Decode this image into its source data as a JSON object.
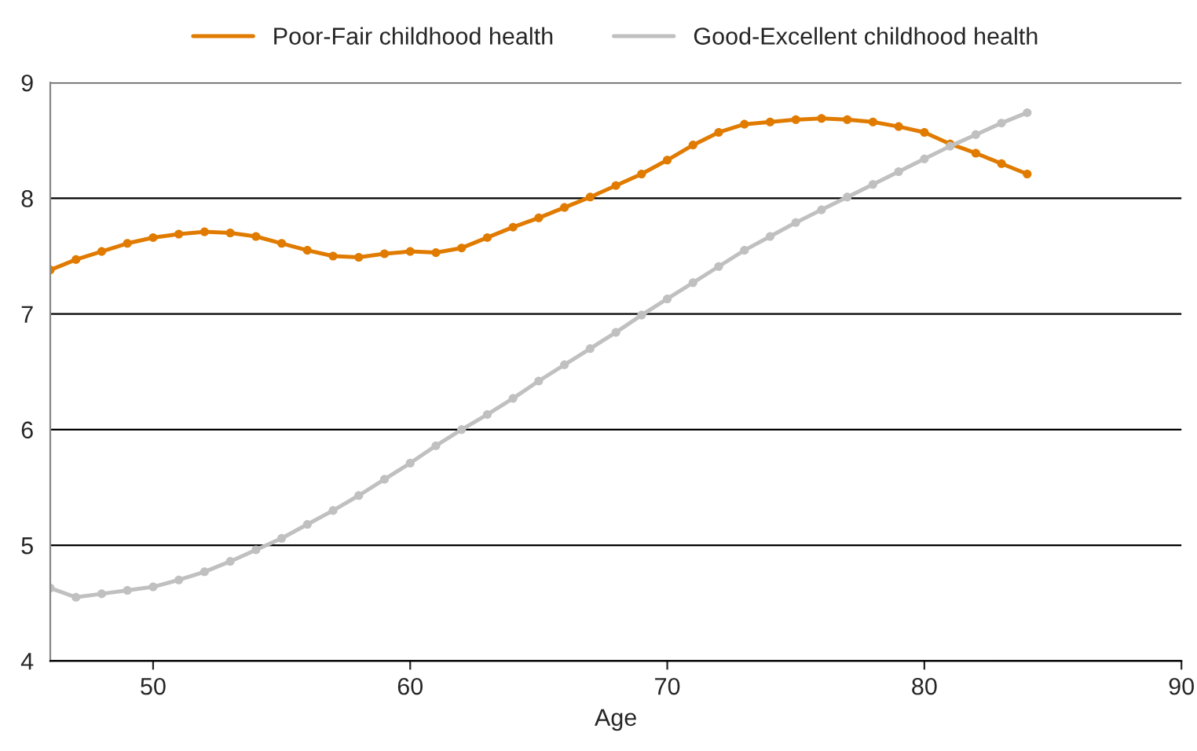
{
  "chart_data": {
    "type": "line",
    "xlabel": "Age",
    "x": [
      46,
      47,
      48,
      49,
      50,
      51,
      52,
      53,
      54,
      55,
      56,
      57,
      58,
      59,
      60,
      61,
      62,
      63,
      64,
      65,
      66,
      67,
      68,
      69,
      70,
      71,
      72,
      73,
      74,
      75,
      76,
      77,
      78,
      79,
      80,
      81,
      82,
      83,
      84
    ],
    "series": [
      {
        "name": "Poor-Fair childhood health",
        "color": "#e07b00",
        "values": [
          7.38,
          7.47,
          7.54,
          7.61,
          7.66,
          7.69,
          7.71,
          7.7,
          7.67,
          7.61,
          7.55,
          7.5,
          7.49,
          7.52,
          7.54,
          7.53,
          7.57,
          7.66,
          7.75,
          7.83,
          7.92,
          8.01,
          8.11,
          8.21,
          8.33,
          8.46,
          8.57,
          8.64,
          8.66,
          8.68,
          8.69,
          8.68,
          8.66,
          8.62,
          8.57,
          8.47,
          8.39,
          8.3,
          8.21
        ]
      },
      {
        "name": "Good-Excellent childhood health",
        "color": "#c0c0c0",
        "values": [
          4.63,
          4.55,
          4.58,
          4.61,
          4.64,
          4.7,
          4.77,
          4.86,
          4.96,
          5.06,
          5.18,
          5.3,
          5.43,
          5.57,
          5.71,
          5.86,
          6.0,
          6.13,
          6.27,
          6.42,
          6.56,
          6.7,
          6.84,
          6.99,
          7.13,
          7.27,
          7.41,
          7.55,
          7.67,
          7.79,
          7.9,
          8.01,
          8.12,
          8.23,
          8.34,
          8.45,
          8.55,
          8.65,
          8.74
        ]
      }
    ],
    "xlim": [
      46,
      90
    ],
    "xticks": [
      50,
      60,
      70,
      80,
      90
    ],
    "ylim": [
      4,
      9
    ],
    "yticks": [
      4,
      5,
      6,
      7,
      8,
      9
    ],
    "grid": "y",
    "legend": "top",
    "marker": "circle",
    "line_style": "solid"
  }
}
